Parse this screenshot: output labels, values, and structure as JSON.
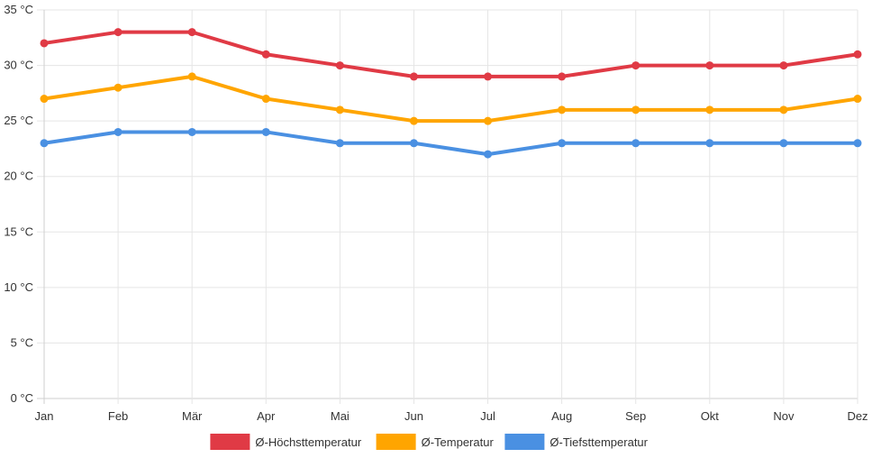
{
  "chart_data": {
    "type": "line",
    "title": "",
    "xlabel": "",
    "ylabel": "",
    "categories": [
      "Jan",
      "Feb",
      "Mär",
      "Apr",
      "Mai",
      "Jun",
      "Jul",
      "Aug",
      "Sep",
      "Okt",
      "Nov",
      "Dez"
    ],
    "ylim": [
      0,
      35
    ],
    "y_ticks": [
      0,
      5,
      10,
      15,
      20,
      25,
      30,
      35
    ],
    "y_tick_labels": [
      "0 °C",
      "5 °C",
      "10 °C",
      "15 °C",
      "20 °C",
      "25 °C",
      "30 °C",
      "35 °C"
    ],
    "grid": true,
    "legend_position": "bottom-center",
    "series": [
      {
        "name": "Ø-Höchsttemperatur",
        "color": "#e03a45",
        "values": [
          32,
          33,
          33,
          31,
          30,
          29,
          29,
          29,
          30,
          30,
          30,
          31
        ]
      },
      {
        "name": "Ø-Temperatur",
        "color": "#ffa500",
        "values": [
          27,
          28,
          29,
          27,
          26,
          25,
          25,
          26,
          26,
          26,
          26,
          27
        ]
      },
      {
        "name": "Ø-Tiefsttemperatur",
        "color": "#4a90e2",
        "values": [
          23,
          24,
          24,
          24,
          23,
          23,
          22,
          23,
          23,
          23,
          23,
          23
        ]
      }
    ]
  }
}
